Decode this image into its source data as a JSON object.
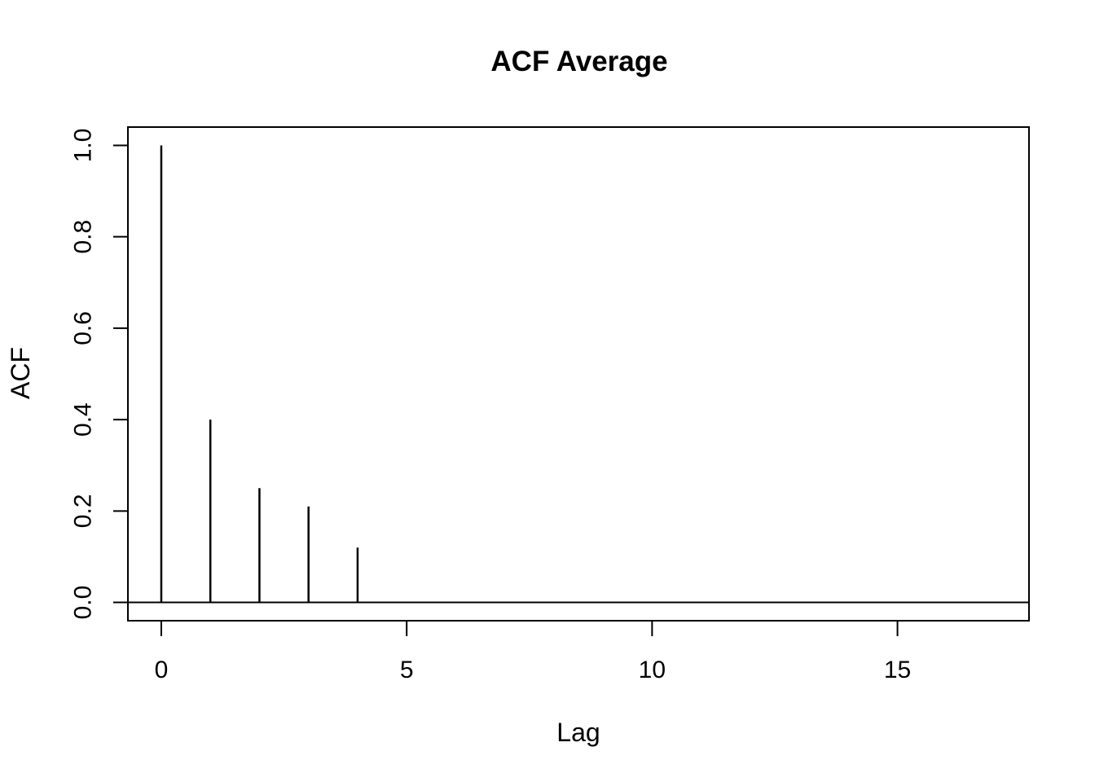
{
  "page": {
    "background": "#ffffff",
    "foreground": "#000000"
  },
  "chart_data": {
    "type": "bar",
    "variant": "acf-spike-plot",
    "title": "ACF Average",
    "xlabel": "Lag",
    "ylabel": "ACF",
    "x": [
      0,
      1,
      2,
      3,
      4,
      5,
      6,
      7,
      8,
      9,
      10,
      11,
      12,
      13,
      14,
      15,
      16,
      17
    ],
    "values": [
      1.0,
      0.4,
      0.25,
      0.21,
      0.12,
      0,
      0,
      0,
      0,
      0,
      0,
      0,
      0,
      0,
      0,
      0,
      0,
      0
    ],
    "series_color": "#000000",
    "xlim": [
      -0.68,
      17.68
    ],
    "ylim": [
      -0.04,
      1.04
    ],
    "xticks": {
      "values": [
        0,
        5,
        10,
        15
      ],
      "labels": [
        "0",
        "5",
        "10",
        "15"
      ]
    },
    "yticks": {
      "values": [
        0.0,
        0.2,
        0.4,
        0.6,
        0.8,
        1.0
      ],
      "labels": [
        "0.0",
        "0.2",
        "0.4",
        "0.6",
        "0.8",
        "1.0"
      ]
    },
    "zero_line": true,
    "grid": false,
    "legend": null,
    "frame": true
  }
}
